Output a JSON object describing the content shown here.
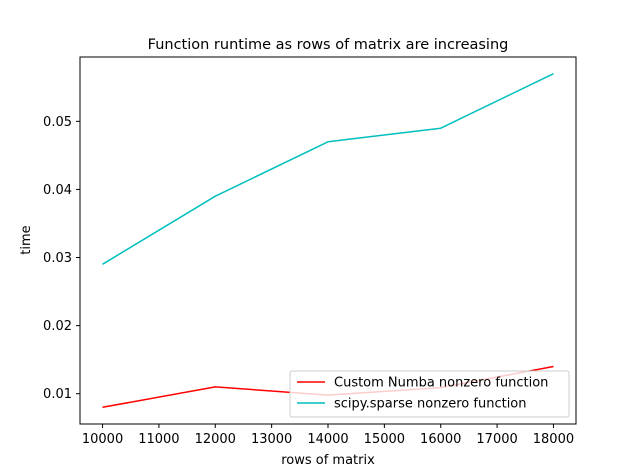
{
  "chart_data": {
    "type": "line",
    "title": "Function runtime as rows of matrix are increasing",
    "xlabel": "rows of matrix",
    "ylabel": "time",
    "x": [
      10000,
      12000,
      14000,
      16000,
      18000
    ],
    "series": [
      {
        "name": "Custom Numba nonzero function",
        "color": "#ff0000",
        "values": [
          0.008,
          0.011,
          0.0098,
          0.0109,
          0.014
        ]
      },
      {
        "name": "scipy.sparse nonzero function",
        "color": "#00bfbf",
        "values": [
          0.029,
          0.039,
          0.047,
          0.049,
          0.057
        ]
      }
    ],
    "xticks": [
      "10000",
      "11000",
      "12000",
      "13000",
      "14000",
      "15000",
      "16000",
      "17000",
      "18000"
    ],
    "xtick_values": [
      10000,
      11000,
      12000,
      13000,
      14000,
      15000,
      16000,
      17000,
      18000
    ],
    "yticks": [
      "0.01",
      "0.02",
      "0.03",
      "0.04",
      "0.05"
    ],
    "ytick_values": [
      0.01,
      0.02,
      0.03,
      0.04,
      0.05
    ],
    "xlim": [
      9600,
      18400
    ],
    "ylim": [
      0.00555,
      0.05945
    ],
    "grid": false,
    "legend_position": "lower-right"
  }
}
